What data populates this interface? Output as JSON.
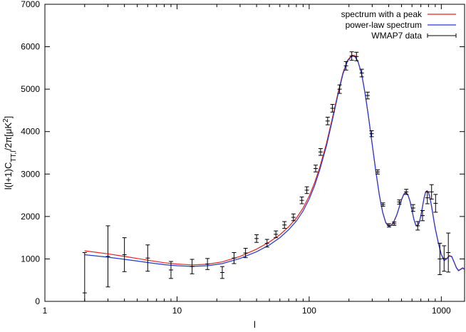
{
  "chart_data": {
    "type": "line",
    "title": "",
    "xlabel": "l",
    "ylabel": "l(l+1)C",
    "ylabel_sub": "TT,l",
    "ylabel_rest": "/2π[μK",
    "ylabel_sup": "2",
    "ylabel_end": "]",
    "x_scale": "log",
    "xlim": [
      1,
      1500
    ],
    "ylim": [
      0,
      7000
    ],
    "x_ticks": [
      1,
      10,
      100,
      1000
    ],
    "x_tick_labels": [
      "1",
      "10",
      "100",
      "1000"
    ],
    "y_ticks": [
      0,
      1000,
      2000,
      3000,
      4000,
      5000,
      6000,
      7000
    ],
    "y_tick_labels": [
      "0",
      "1000",
      "2000",
      "3000",
      "4000",
      "5000",
      "6000",
      "7000"
    ],
    "grid": false,
    "legend_position": "top-right",
    "series": [
      {
        "name": "spectrum with a peak",
        "color": "#e8221b",
        "kind": "line",
        "x": [
          2,
          3,
          4,
          5,
          6,
          8,
          10,
          13,
          17,
          22,
          30,
          40,
          50,
          60,
          70,
          80,
          90,
          100,
          110,
          120,
          135,
          150,
          165,
          180,
          195,
          210,
          222,
          235,
          250,
          265,
          280,
          300,
          320,
          340,
          360,
          380,
          400,
          420,
          440,
          460,
          480,
          500,
          520,
          540,
          560,
          580,
          600,
          620,
          640,
          660,
          680,
          700,
          720,
          740,
          760,
          780,
          800,
          820,
          840,
          860,
          880,
          900,
          950,
          1000,
          1050,
          1100,
          1150,
          1200,
          1250,
          1300,
          1350,
          1400,
          1450,
          1500
        ],
        "y": [
          1190,
          1120,
          1060,
          1010,
          970,
          910,
          880,
          860,
          875,
          930,
          1060,
          1230,
          1400,
          1570,
          1760,
          1960,
          2200,
          2480,
          2800,
          3150,
          3720,
          4330,
          4900,
          5380,
          5680,
          5800,
          5790,
          5640,
          5350,
          4900,
          4400,
          3700,
          3050,
          2500,
          2100,
          1860,
          1780,
          1800,
          1900,
          2040,
          2220,
          2400,
          2530,
          2570,
          2510,
          2360,
          2150,
          1940,
          1810,
          1780,
          1860,
          2020,
          2230,
          2440,
          2570,
          2610,
          2570,
          2450,
          2280,
          2090,
          1900,
          1720,
          1380,
          1110,
          970,
          1010,
          1080,
          1060,
          930,
          800,
          730,
          760,
          790,
          760
        ]
      },
      {
        "name": "power-law spectrum",
        "color": "#1f3bd8",
        "kind": "line",
        "x": [
          2,
          3,
          4,
          5,
          6,
          8,
          10,
          13,
          17,
          22,
          30,
          40,
          50,
          60,
          70,
          80,
          90,
          100,
          110,
          120,
          135,
          150,
          165,
          180,
          195,
          210,
          222,
          235,
          250,
          265,
          280,
          300,
          320,
          340,
          360,
          380,
          400,
          420,
          440,
          460,
          480,
          500,
          520,
          540,
          560,
          580,
          600,
          620,
          640,
          660,
          680,
          700,
          720,
          740,
          760,
          780,
          800,
          820,
          840,
          860,
          880,
          900,
          950,
          1000,
          1050,
          1100,
          1150,
          1200,
          1250,
          1300,
          1350,
          1400,
          1450,
          1500
        ],
        "y": [
          1100,
          1040,
          990,
          950,
          915,
          865,
          840,
          825,
          840,
          890,
          1010,
          1170,
          1330,
          1500,
          1690,
          1890,
          2130,
          2410,
          2730,
          3090,
          3660,
          4280,
          4860,
          5350,
          5660,
          5780,
          5770,
          5630,
          5340,
          4890,
          4390,
          3690,
          3040,
          2490,
          2090,
          1850,
          1770,
          1790,
          1890,
          2030,
          2210,
          2390,
          2520,
          2560,
          2500,
          2350,
          2140,
          1930,
          1800,
          1770,
          1850,
          2010,
          2220,
          2430,
          2560,
          2600,
          2560,
          2440,
          2270,
          2080,
          1890,
          1710,
          1370,
          1100,
          960,
          1000,
          1070,
          1050,
          920,
          790,
          720,
          750,
          780,
          750
        ]
      },
      {
        "name": "WMAP7 data",
        "color": "#000000",
        "kind": "errorbar",
        "x": [
          2,
          3,
          4,
          6,
          9,
          13,
          17,
          22,
          27,
          33,
          40,
          48,
          56,
          65,
          76,
          88,
          96,
          112,
          122,
          138,
          150,
          170,
          190,
          210,
          228,
          250,
          277,
          297,
          330,
          362,
          402,
          440,
          481,
          543,
          612,
          663,
          721,
          784,
          844,
          905,
          975,
          1050,
          1130
        ],
        "y": [
          200,
          1060,
          1100,
          1020,
          740,
          820,
          880,
          680,
          1020,
          1140,
          1480,
          1370,
          1580,
          1800,
          1980,
          2380,
          2620,
          3130,
          3520,
          4250,
          4550,
          5000,
          5550,
          5780,
          5770,
          5380,
          4850,
          3950,
          3050,
          2280,
          1790,
          1830,
          2340,
          2580,
          2200,
          1780,
          2020,
          2440,
          2580,
          2310,
          1000,
          1010,
          1150
        ],
        "err": [
          950,
          720,
          400,
          310,
          200,
          170,
          130,
          140,
          130,
          110,
          90,
          90,
          80,
          80,
          80,
          80,
          80,
          80,
          80,
          90,
          90,
          100,
          100,
          100,
          100,
          90,
          80,
          70,
          50,
          40,
          40,
          40,
          50,
          60,
          80,
          100,
          120,
          140,
          170,
          210,
          370,
          300,
          460
        ]
      }
    ]
  }
}
